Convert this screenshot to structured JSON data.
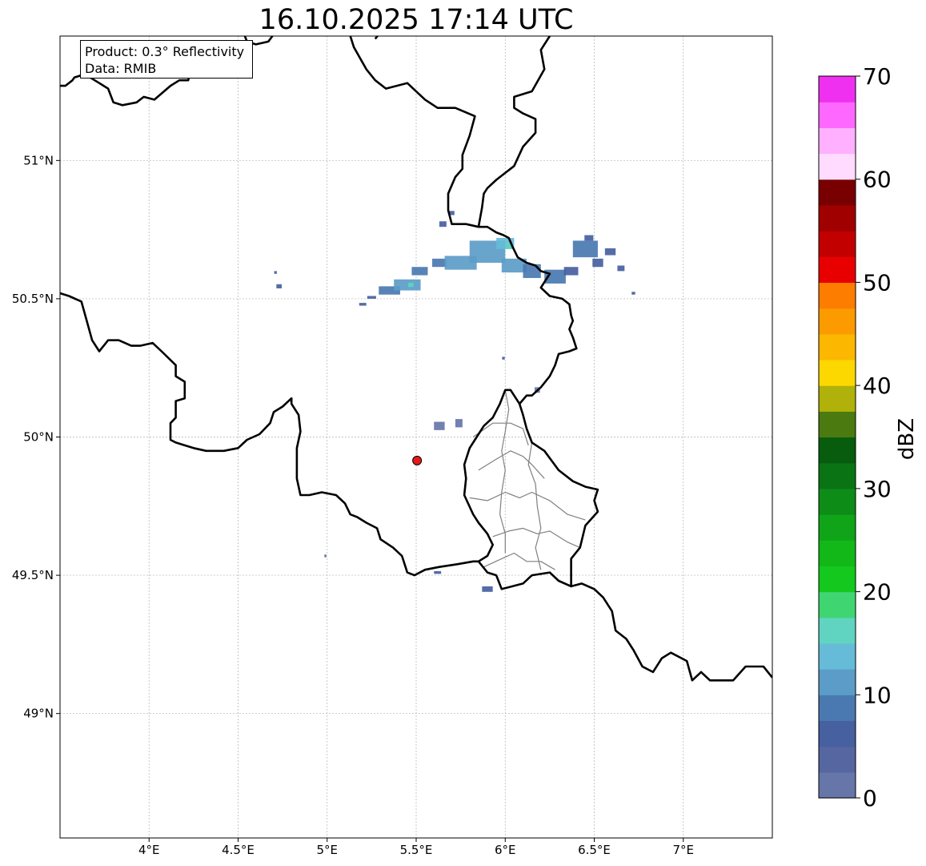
{
  "title": "16.10.2025 17:14 UTC",
  "info": {
    "product": "Product: 0.3° Reflectivity",
    "data": "Data: RMIB"
  },
  "map": {
    "lon_range": [
      3.5,
      7.5
    ],
    "lat_range": [
      48.55,
      51.45
    ],
    "lon_ticks": [
      {
        "value": 4.0,
        "label": "4°E"
      },
      {
        "value": 4.5,
        "label": "4.5°E"
      },
      {
        "value": 5.0,
        "label": "5°E"
      },
      {
        "value": 5.5,
        "label": "5.5°E"
      },
      {
        "value": 6.0,
        "label": "6°E"
      },
      {
        "value": 6.5,
        "label": "6.5°E"
      },
      {
        "value": 7.0,
        "label": "7°E"
      }
    ],
    "lat_ticks": [
      {
        "value": 51.0,
        "label": "51°N"
      },
      {
        "value": 50.5,
        "label": "50.5°N"
      },
      {
        "value": 50.0,
        "label": "50°N"
      },
      {
        "value": 49.5,
        "label": "49.5°N"
      },
      {
        "value": 49.0,
        "label": "49°N"
      }
    ],
    "gridlines": true,
    "radar_site": {
      "lon": 5.505,
      "lat": 49.915,
      "color": "#e41a1c"
    },
    "borders": [
      [
        [
          3.5,
          51.27
        ],
        [
          3.53,
          51.27
        ],
        [
          3.57,
          51.29
        ],
        [
          3.58,
          51.3
        ],
        [
          3.63,
          51.31
        ],
        [
          3.67,
          51.3
        ],
        [
          3.72,
          51.28
        ],
        [
          3.77,
          51.26
        ],
        [
          3.8,
          51.21
        ],
        [
          3.85,
          51.2
        ],
        [
          3.93,
          51.21
        ],
        [
          3.97,
          51.23
        ],
        [
          4.03,
          51.22
        ],
        [
          4.12,
          51.27
        ],
        [
          4.17,
          51.29
        ],
        [
          4.22,
          51.29
        ],
        [
          4.25,
          51.38
        ],
        [
          4.3,
          51.37
        ],
        [
          4.4,
          51.36
        ],
        [
          4.43,
          51.37
        ]
      ],
      [
        [
          4.52,
          51.48
        ],
        [
          4.55,
          51.43
        ],
        [
          4.6,
          51.42
        ],
        [
          4.67,
          51.43
        ],
        [
          4.75,
          51.5
        ]
      ],
      [
        [
          5.13,
          51.45
        ],
        [
          5.15,
          51.41
        ],
        [
          5.22,
          51.33
        ],
        [
          5.27,
          51.29
        ],
        [
          5.33,
          51.26
        ],
        [
          5.45,
          51.28
        ],
        [
          5.55,
          51.22
        ],
        [
          5.62,
          51.19
        ],
        [
          5.72,
          51.19
        ],
        [
          5.83,
          51.16
        ],
        [
          5.8,
          51.09
        ],
        [
          5.76,
          51.02
        ],
        [
          5.76,
          50.97
        ],
        [
          5.72,
          50.94
        ],
        [
          5.68,
          50.88
        ],
        [
          5.68,
          50.82
        ],
        [
          5.7,
          50.77
        ],
        [
          5.74,
          50.77
        ],
        [
          5.78,
          50.77
        ],
        [
          5.85,
          50.76
        ],
        [
          5.9,
          50.76
        ],
        [
          5.95,
          50.74
        ],
        [
          5.99,
          50.73
        ],
        [
          6.02,
          50.72
        ],
        [
          6.04,
          50.69
        ],
        [
          6.07,
          50.65
        ],
        [
          6.12,
          50.63
        ],
        [
          6.17,
          50.62
        ],
        [
          6.2,
          50.6
        ],
        [
          6.25,
          50.59
        ],
        [
          6.22,
          50.56
        ],
        [
          6.2,
          50.54
        ],
        [
          6.25,
          50.51
        ],
        [
          6.32,
          50.5
        ],
        [
          6.36,
          50.48
        ],
        [
          6.37,
          50.44
        ],
        [
          6.38,
          50.42
        ],
        [
          6.36,
          50.39
        ],
        [
          6.38,
          50.36
        ],
        [
          6.4,
          50.32
        ],
        [
          6.36,
          50.31
        ],
        [
          6.3,
          50.3
        ],
        [
          6.28,
          50.26
        ],
        [
          6.25,
          50.22
        ],
        [
          6.2,
          50.18
        ],
        [
          6.15,
          50.15
        ],
        [
          6.12,
          50.15
        ],
        [
          6.08,
          50.12
        ],
        [
          6.03,
          50.17
        ],
        [
          6.0,
          50.17
        ],
        [
          5.97,
          50.12
        ],
        [
          5.93,
          50.07
        ],
        [
          5.88,
          50.04
        ],
        [
          5.83,
          49.99
        ],
        [
          5.8,
          49.96
        ],
        [
          5.77,
          49.9
        ],
        [
          5.78,
          49.85
        ],
        [
          5.77,
          49.79
        ],
        [
          5.82,
          49.72
        ],
        [
          5.85,
          49.69
        ],
        [
          5.9,
          49.65
        ],
        [
          5.93,
          49.61
        ],
        [
          5.9,
          49.57
        ],
        [
          5.85,
          49.55
        ],
        [
          5.82,
          49.55
        ],
        [
          5.73,
          49.54
        ],
        [
          5.63,
          49.53
        ],
        [
          5.55,
          49.52
        ],
        [
          5.49,
          49.5
        ],
        [
          5.45,
          49.51
        ],
        [
          5.42,
          49.57
        ],
        [
          5.37,
          49.6
        ],
        [
          5.3,
          49.63
        ],
        [
          5.28,
          49.67
        ],
        [
          5.22,
          49.69
        ],
        [
          5.17,
          49.71
        ],
        [
          5.13,
          49.72
        ],
        [
          5.1,
          49.76
        ],
        [
          5.05,
          49.79
        ],
        [
          4.97,
          49.8
        ],
        [
          4.9,
          49.79
        ],
        [
          4.85,
          49.79
        ],
        [
          4.83,
          49.85
        ],
        [
          4.83,
          49.9
        ],
        [
          4.83,
          49.96
        ],
        [
          4.85,
          50.02
        ],
        [
          4.84,
          50.08
        ],
        [
          4.8,
          50.12
        ],
        [
          4.8,
          50.14
        ],
        [
          4.75,
          50.11
        ],
        [
          4.7,
          50.09
        ],
        [
          4.68,
          50.05
        ],
        [
          4.62,
          50.01
        ],
        [
          4.55,
          49.99
        ],
        [
          4.5,
          49.96
        ],
        [
          4.42,
          49.95
        ],
        [
          4.32,
          49.95
        ],
        [
          4.25,
          49.96
        ],
        [
          4.2,
          49.97
        ],
        [
          4.15,
          49.98
        ],
        [
          4.12,
          49.99
        ],
        [
          4.12,
          50.05
        ],
        [
          4.15,
          50.07
        ],
        [
          4.15,
          50.13
        ],
        [
          4.2,
          50.14
        ],
        [
          4.2,
          50.2
        ],
        [
          4.15,
          50.22
        ],
        [
          4.15,
          50.26
        ],
        [
          4.07,
          50.31
        ],
        [
          4.02,
          50.34
        ],
        [
          3.95,
          50.33
        ],
        [
          3.9,
          50.33
        ],
        [
          3.83,
          50.35
        ],
        [
          3.77,
          50.35
        ],
        [
          3.72,
          50.31
        ],
        [
          3.68,
          50.35
        ],
        [
          3.65,
          50.42
        ],
        [
          3.62,
          50.49
        ],
        [
          3.55,
          50.51
        ],
        [
          3.5,
          50.52
        ]
      ],
      [
        [
          6.08,
          50.12
        ],
        [
          6.1,
          50.08
        ],
        [
          6.12,
          50.03
        ],
        [
          6.15,
          49.98
        ],
        [
          6.22,
          49.95
        ],
        [
          6.3,
          49.88
        ],
        [
          6.38,
          49.84
        ],
        [
          6.45,
          49.82
        ],
        [
          6.52,
          49.81
        ],
        [
          6.5,
          49.77
        ],
        [
          6.52,
          49.73
        ],
        [
          6.45,
          49.68
        ],
        [
          6.42,
          49.6
        ],
        [
          6.37,
          49.56
        ],
        [
          6.37,
          49.46
        ],
        [
          6.3,
          49.48
        ],
        [
          6.25,
          49.51
        ],
        [
          6.15,
          49.5
        ],
        [
          6.1,
          49.47
        ],
        [
          5.98,
          49.45
        ],
        [
          5.95,
          49.5
        ],
        [
          5.9,
          49.51
        ],
        [
          5.85,
          49.55
        ]
      ],
      [
        [
          6.37,
          49.46
        ],
        [
          6.43,
          49.47
        ],
        [
          6.5,
          49.45
        ],
        [
          6.55,
          49.42
        ],
        [
          6.6,
          49.37
        ],
        [
          6.62,
          49.3
        ],
        [
          6.68,
          49.27
        ],
        [
          6.72,
          49.23
        ],
        [
          6.77,
          49.17
        ],
        [
          6.83,
          49.15
        ],
        [
          6.88,
          49.2
        ],
        [
          6.93,
          49.22
        ],
        [
          7.02,
          49.19
        ],
        [
          7.05,
          49.12
        ],
        [
          7.1,
          49.15
        ],
        [
          7.15,
          49.12
        ],
        [
          7.2,
          49.12
        ],
        [
          7.28,
          49.12
        ],
        [
          7.35,
          49.17
        ],
        [
          7.4,
          49.17
        ],
        [
          7.45,
          49.17
        ],
        [
          7.5,
          49.13
        ]
      ],
      [
        [
          5.32,
          51.48
        ],
        [
          5.27,
          51.44
        ]
      ],
      [
        [
          5.85,
          50.76
        ],
        [
          5.87,
          50.83
        ],
        [
          5.88,
          50.88
        ],
        [
          5.9,
          50.9
        ],
        [
          5.95,
          50.93
        ],
        [
          6.05,
          50.98
        ],
        [
          6.1,
          51.05
        ],
        [
          6.17,
          51.1
        ],
        [
          6.17,
          51.15
        ],
        [
          6.1,
          51.17
        ],
        [
          6.05,
          51.19
        ],
        [
          6.05,
          51.23
        ],
        [
          6.15,
          51.25
        ],
        [
          6.22,
          51.33
        ],
        [
          6.2,
          51.4
        ],
        [
          6.25,
          51.45
        ]
      ]
    ],
    "admin_borders": [
      [
        [
          5.82,
          50.0
        ],
        [
          5.93,
          50.05
        ],
        [
          6.03,
          50.05
        ],
        [
          6.1,
          50.03
        ],
        [
          6.13,
          49.97
        ]
      ],
      [
        [
          5.85,
          49.88
        ],
        [
          5.95,
          49.92
        ],
        [
          6.03,
          49.95
        ],
        [
          6.1,
          49.93
        ],
        [
          6.15,
          49.9
        ],
        [
          6.22,
          49.85
        ]
      ],
      [
        [
          5.8,
          49.78
        ],
        [
          5.9,
          49.77
        ],
        [
          6.0,
          49.8
        ],
        [
          6.08,
          49.78
        ],
        [
          6.15,
          49.8
        ],
        [
          6.25,
          49.77
        ],
        [
          6.35,
          49.72
        ],
        [
          6.45,
          49.7
        ]
      ],
      [
        [
          5.93,
          49.64
        ],
        [
          6.02,
          49.66
        ],
        [
          6.1,
          49.67
        ],
        [
          6.18,
          49.65
        ],
        [
          6.25,
          49.66
        ],
        [
          6.35,
          49.62
        ],
        [
          6.42,
          49.6
        ]
      ],
      [
        [
          5.88,
          49.53
        ],
        [
          5.98,
          49.56
        ],
        [
          6.05,
          49.58
        ],
        [
          6.12,
          49.55
        ],
        [
          6.2,
          49.55
        ],
        [
          6.28,
          49.52
        ]
      ],
      [
        [
          6.0,
          50.17
        ],
        [
          6.02,
          50.1
        ],
        [
          6.0,
          50.02
        ],
        [
          5.98,
          49.95
        ],
        [
          6.0,
          49.88
        ],
        [
          5.98,
          49.8
        ],
        [
          5.97,
          49.72
        ],
        [
          6.0,
          49.65
        ],
        [
          6.0,
          49.58
        ]
      ],
      [
        [
          6.15,
          49.98
        ],
        [
          6.13,
          49.9
        ],
        [
          6.17,
          49.83
        ],
        [
          6.18,
          49.75
        ],
        [
          6.2,
          49.67
        ],
        [
          6.17,
          49.6
        ],
        [
          6.2,
          49.52
        ]
      ]
    ],
    "echo_cells": [
      {
        "lon": 4.71,
        "lat": 50.595,
        "w": 0.015,
        "h": 0.01,
        "dbz": 5
      },
      {
        "lon": 4.73,
        "lat": 50.545,
        "w": 0.03,
        "h": 0.015,
        "dbz": 5
      },
      {
        "lon": 5.25,
        "lat": 50.505,
        "w": 0.05,
        "h": 0.01,
        "dbz": 5
      },
      {
        "lon": 5.35,
        "lat": 50.53,
        "w": 0.12,
        "h": 0.03,
        "dbz": 8
      },
      {
        "lon": 5.45,
        "lat": 50.55,
        "w": 0.15,
        "h": 0.04,
        "dbz": 10
      },
      {
        "lon": 5.47,
        "lat": 50.55,
        "w": 0.03,
        "h": 0.015,
        "dbz": 16
      },
      {
        "lon": 5.52,
        "lat": 50.6,
        "w": 0.09,
        "h": 0.03,
        "dbz": 8
      },
      {
        "lon": 5.63,
        "lat": 50.63,
        "w": 0.08,
        "h": 0.03,
        "dbz": 8
      },
      {
        "lon": 5.75,
        "lat": 50.63,
        "w": 0.18,
        "h": 0.05,
        "dbz": 10
      },
      {
        "lon": 5.9,
        "lat": 50.67,
        "w": 0.2,
        "h": 0.08,
        "dbz": 10
      },
      {
        "lon": 6.0,
        "lat": 50.7,
        "w": 0.1,
        "h": 0.04,
        "dbz": 13
      },
      {
        "lon": 6.02,
        "lat": 50.69,
        "w": 0.04,
        "h": 0.02,
        "dbz": 16
      },
      {
        "lon": 6.05,
        "lat": 50.62,
        "w": 0.14,
        "h": 0.05,
        "dbz": 10
      },
      {
        "lon": 6.15,
        "lat": 50.6,
        "w": 0.1,
        "h": 0.05,
        "dbz": 8
      },
      {
        "lon": 6.28,
        "lat": 50.58,
        "w": 0.12,
        "h": 0.05,
        "dbz": 8
      },
      {
        "lon": 6.37,
        "lat": 50.6,
        "w": 0.08,
        "h": 0.03,
        "dbz": 5
      },
      {
        "lon": 6.45,
        "lat": 50.68,
        "w": 0.14,
        "h": 0.06,
        "dbz": 8
      },
      {
        "lon": 6.47,
        "lat": 50.72,
        "w": 0.05,
        "h": 0.02,
        "dbz": 5
      },
      {
        "lon": 6.52,
        "lat": 50.63,
        "w": 0.06,
        "h": 0.03,
        "dbz": 5
      },
      {
        "lon": 6.59,
        "lat": 50.67,
        "w": 0.06,
        "h": 0.025,
        "dbz": 5
      },
      {
        "lon": 6.65,
        "lat": 50.61,
        "w": 0.04,
        "h": 0.02,
        "dbz": 5
      },
      {
        "lon": 6.72,
        "lat": 50.52,
        "w": 0.02,
        "h": 0.01,
        "dbz": 5
      },
      {
        "lon": 5.65,
        "lat": 50.77,
        "w": 0.04,
        "h": 0.02,
        "dbz": 5
      },
      {
        "lon": 5.7,
        "lat": 50.81,
        "w": 0.03,
        "h": 0.015,
        "dbz": 5
      },
      {
        "lon": 5.2,
        "lat": 50.48,
        "w": 0.04,
        "h": 0.01,
        "dbz": 5
      },
      {
        "lon": 5.99,
        "lat": 50.285,
        "w": 0.015,
        "h": 0.01,
        "dbz": 5
      },
      {
        "lon": 5.63,
        "lat": 50.04,
        "w": 0.06,
        "h": 0.03,
        "dbz": 2
      },
      {
        "lon": 5.74,
        "lat": 50.05,
        "w": 0.04,
        "h": 0.03,
        "dbz": 2
      },
      {
        "lon": 6.18,
        "lat": 50.17,
        "w": 0.03,
        "h": 0.02,
        "dbz": 2
      },
      {
        "lon": 5.9,
        "lat": 49.45,
        "w": 0.06,
        "h": 0.02,
        "dbz": 5
      },
      {
        "lon": 5.62,
        "lat": 49.51,
        "w": 0.04,
        "h": 0.01,
        "dbz": 5
      },
      {
        "lon": 4.99,
        "lat": 49.57,
        "w": 0.01,
        "h": 0.01,
        "dbz": 5
      }
    ]
  },
  "colorbar": {
    "label": "dBZ",
    "min": 0,
    "max": 70,
    "step": 2.5,
    "ticks": [
      {
        "value": 0,
        "label": "0"
      },
      {
        "value": 10,
        "label": "10"
      },
      {
        "value": 20,
        "label": "20"
      },
      {
        "value": 30,
        "label": "30"
      },
      {
        "value": 40,
        "label": "40"
      },
      {
        "value": 50,
        "label": "50"
      },
      {
        "value": 60,
        "label": "60"
      },
      {
        "value": 70,
        "label": "70"
      }
    ],
    "colors": [
      "#6676a8",
      "#5666a0",
      "#4660a0",
      "#4a78b0",
      "#5c9cc8",
      "#66bcd8",
      "#60d4c0",
      "#3fd672",
      "#14c81e",
      "#12b818",
      "#10a418",
      "#0e8c18",
      "#0a7414",
      "#075c0e",
      "#4a7a10",
      "#b0b10a",
      "#fdd700",
      "#fcb700",
      "#fb9b00",
      "#fd7d00",
      "#e80000",
      "#c20000",
      "#a00000",
      "#780000",
      "#ffdcff",
      "#ffb0ff",
      "#ff68ff",
      "#f030f0"
    ]
  }
}
